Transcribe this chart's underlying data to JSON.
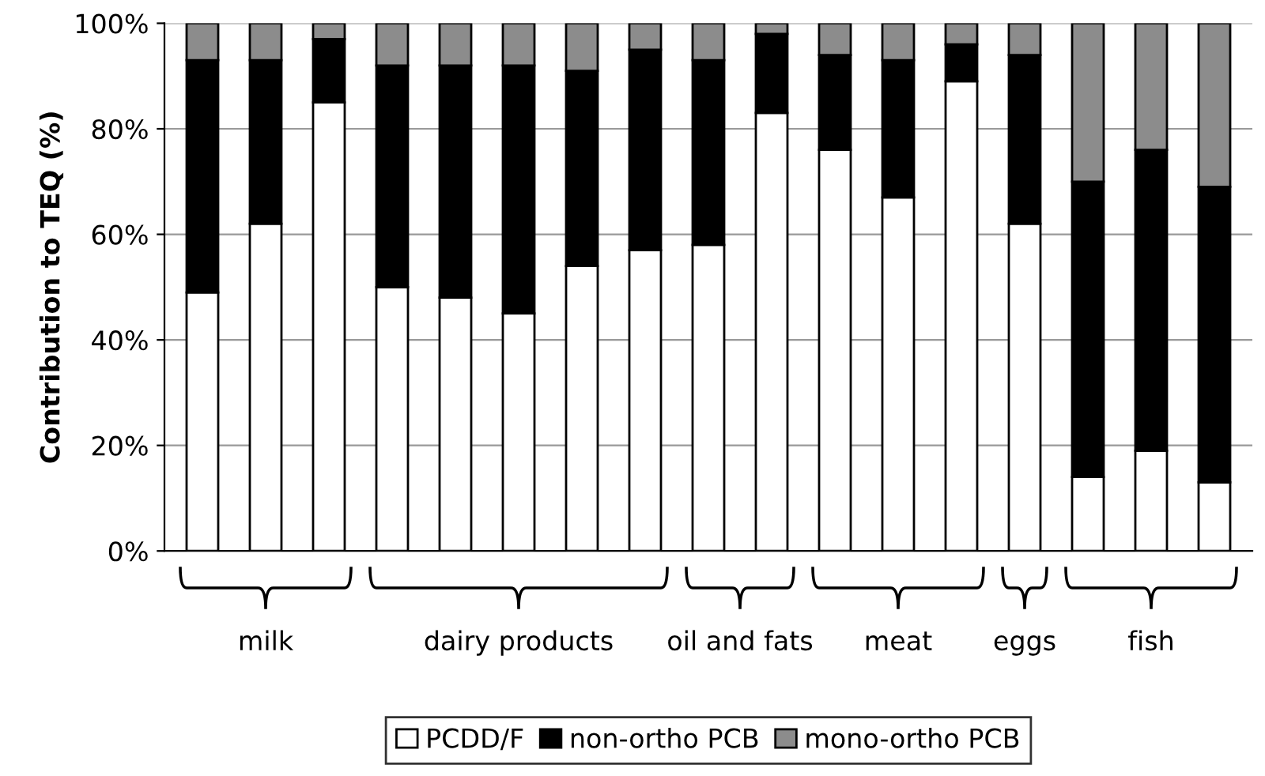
{
  "chart_data": {
    "type": "bar",
    "stacked": true,
    "ylabel": "Contribution to TEQ (%)",
    "categories": [
      null,
      null,
      null,
      null,
      null,
      null,
      null,
      null,
      null,
      null,
      null,
      null,
      null,
      null,
      null,
      null,
      null
    ],
    "series": [
      {
        "name": "PCDD/F",
        "color": "#ffffff",
        "values": [
          49,
          62,
          85,
          50,
          48,
          45,
          54,
          57,
          58,
          83,
          76,
          67,
          89,
          62,
          14,
          19,
          13
        ]
      },
      {
        "name": "non-ortho PCB",
        "color": "#000000",
        "values": [
          44,
          31,
          12,
          42,
          44,
          47,
          37,
          38,
          35,
          15,
          18,
          26,
          7,
          32,
          56,
          57,
          56
        ]
      },
      {
        "name": "mono-ortho PCB",
        "color": "#8c8c8c",
        "values": [
          7,
          7,
          3,
          8,
          8,
          8,
          9,
          5,
          7,
          2,
          6,
          7,
          4,
          6,
          30,
          24,
          31
        ]
      }
    ],
    "annotations": [
      "milk",
      "dairy products",
      "oil and fats",
      "meat",
      "eggs",
      "fish"
    ],
    "ylim": [
      0,
      100
    ],
    "yticks": [
      {
        "value": 0,
        "label": "0%"
      },
      {
        "value": 20,
        "label": "20%"
      },
      {
        "value": 40,
        "label": "40%"
      },
      {
        "value": 60,
        "label": "60%"
      },
      {
        "value": 80,
        "label": "80%"
      },
      {
        "value": 100,
        "label": "100%"
      }
    ],
    "grid": "y",
    "legend": "bottom"
  }
}
